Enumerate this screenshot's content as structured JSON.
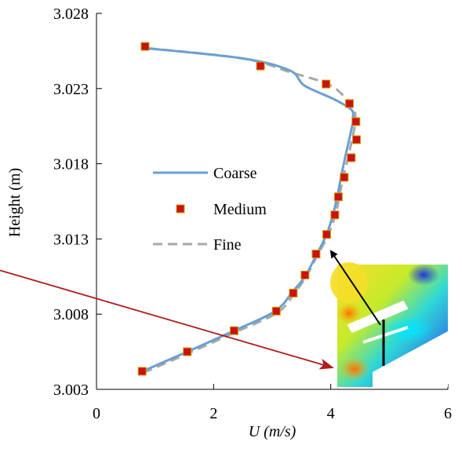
{
  "chart_data": {
    "type": "line",
    "title": "",
    "xlabel": "U (m/s)",
    "ylabel": "Height (m)",
    "xlim": [
      0,
      6
    ],
    "ylim": [
      3.003,
      3.028
    ],
    "xticks": [
      0,
      2,
      4,
      6
    ],
    "yticks": [
      3.003,
      3.008,
      3.013,
      3.018,
      3.023,
      3.028
    ],
    "xtick_labels": [
      "0",
      "2",
      "4",
      "6"
    ],
    "ytick_labels": [
      "3.003",
      "3.008",
      "3.013",
      "3.018",
      "3.023",
      "3.028"
    ],
    "grid": false,
    "legend_position": "center-left",
    "series": [
      {
        "name": "Coarse",
        "style": "solid-line",
        "color": "#6a9fd4",
        "x": [
          0.73,
          1.55,
          2.35,
          3.05,
          3.35,
          3.56,
          3.75,
          3.93,
          4.05,
          4.12,
          4.18,
          4.25,
          4.32,
          4.38,
          4.38,
          4.35,
          4.05,
          3.55,
          3.3,
          2.5,
          0.8
        ],
        "y": [
          3.0041,
          3.0055,
          3.0069,
          3.0082,
          3.0095,
          3.0105,
          3.0119,
          3.0133,
          3.0148,
          3.016,
          3.0172,
          3.0185,
          3.0197,
          3.0208,
          3.0211,
          3.0216,
          3.0223,
          3.0232,
          3.0242,
          3.025,
          3.0257
        ]
      },
      {
        "name": "Medium",
        "style": "square-markers",
        "color": "#cc1111",
        "edge_color": "#c8a200",
        "x": [
          0.78,
          1.55,
          2.35,
          3.07,
          3.36,
          3.56,
          3.75,
          3.93,
          4.07,
          4.13,
          4.23,
          4.35,
          4.44,
          4.43,
          4.32,
          3.92,
          2.8,
          0.83
        ],
        "y": [
          3.0042,
          3.0055,
          3.0069,
          3.0082,
          3.0094,
          3.0106,
          3.012,
          3.0133,
          3.0146,
          3.0158,
          3.0171,
          3.0184,
          3.0196,
          3.0208,
          3.022,
          3.0233,
          3.0245,
          3.0258
        ]
      },
      {
        "name": "Fine",
        "style": "dashed-line",
        "color": "#a8a8a8",
        "x": [
          0.8,
          1.57,
          2.37,
          3.09,
          3.38,
          3.58,
          3.77,
          3.95,
          4.08,
          4.15,
          4.22,
          4.3,
          4.37,
          4.42,
          4.42,
          4.4,
          4.25,
          3.95,
          3.3,
          2.5,
          0.83
        ],
        "y": [
          3.0041,
          3.0054,
          3.0068,
          3.0081,
          3.0094,
          3.0105,
          3.0119,
          3.0132,
          3.0146,
          3.0159,
          3.0172,
          3.0185,
          3.0197,
          3.0207,
          3.0211,
          3.0216,
          3.0224,
          3.0233,
          3.0241,
          3.025,
          3.0257
        ]
      }
    ]
  },
  "annotations": {
    "inset_image": "cfd-velocity-contour-inset",
    "black_arrow_color": "#000000",
    "red_arrow_color": "#b31b1b"
  }
}
